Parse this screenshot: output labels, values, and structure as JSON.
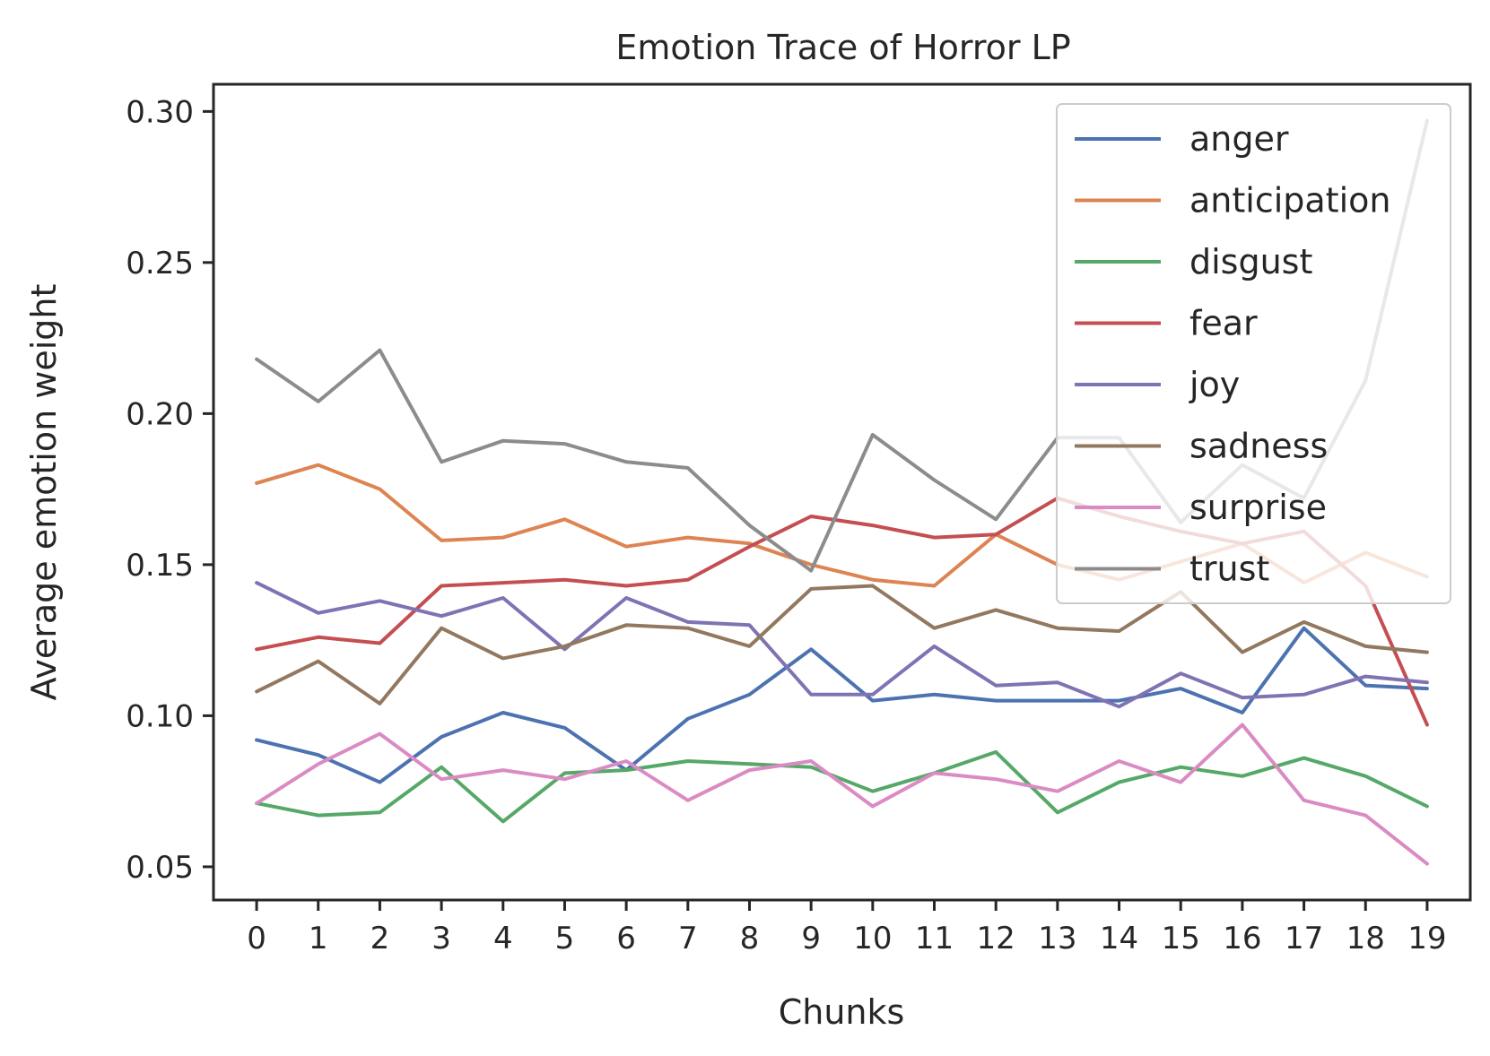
{
  "chart_data": {
    "type": "line",
    "title": "Emotion Trace of Horror LP",
    "xlabel": "Chunks",
    "ylabel": "Average emotion weight",
    "x": [
      0,
      1,
      2,
      3,
      4,
      5,
      6,
      7,
      8,
      9,
      10,
      11,
      12,
      13,
      14,
      15,
      16,
      17,
      18,
      19
    ],
    "xlim": [
      -0.7,
      19.7
    ],
    "ylim": [
      0.039,
      0.309
    ],
    "yticks": [
      0.05,
      0.1,
      0.15,
      0.2,
      0.25,
      0.3
    ],
    "ytick_labels": [
      "0.05",
      "0.10",
      "0.15",
      "0.20",
      "0.25",
      "0.30"
    ],
    "xtick_labels": [
      "0",
      "1",
      "2",
      "3",
      "4",
      "5",
      "6",
      "7",
      "8",
      "9",
      "10",
      "11",
      "12",
      "13",
      "14",
      "15",
      "16",
      "17",
      "18",
      "19"
    ],
    "grid": false,
    "legend_position": "top-right",
    "series": [
      {
        "name": "anger",
        "color": "#4c72b0",
        "values": [
          0.092,
          0.087,
          0.078,
          0.093,
          0.101,
          0.096,
          0.082,
          0.099,
          0.107,
          0.122,
          0.105,
          0.107,
          0.105,
          0.105,
          0.105,
          0.109,
          0.101,
          0.129,
          0.11,
          0.109
        ]
      },
      {
        "name": "anticipation",
        "color": "#dd8452",
        "values": [
          0.177,
          0.183,
          0.175,
          0.158,
          0.159,
          0.165,
          0.156,
          0.159,
          0.157,
          0.15,
          0.145,
          0.143,
          0.16,
          0.15,
          0.145,
          0.151,
          0.157,
          0.144,
          0.154,
          0.146
        ]
      },
      {
        "name": "disgust",
        "color": "#55a868",
        "values": [
          0.071,
          0.067,
          0.068,
          0.083,
          0.065,
          0.081,
          0.082,
          0.085,
          0.084,
          0.083,
          0.075,
          0.081,
          0.088,
          0.068,
          0.078,
          0.083,
          0.08,
          0.086,
          0.08,
          0.07
        ]
      },
      {
        "name": "fear",
        "color": "#c44e52",
        "values": [
          0.122,
          0.126,
          0.124,
          0.143,
          0.144,
          0.145,
          0.143,
          0.145,
          0.156,
          0.166,
          0.163,
          0.159,
          0.16,
          0.172,
          0.166,
          0.161,
          0.157,
          0.161,
          0.143,
          0.097
        ]
      },
      {
        "name": "joy",
        "color": "#8172b3",
        "values": [
          0.144,
          0.134,
          0.138,
          0.133,
          0.139,
          0.122,
          0.139,
          0.131,
          0.13,
          0.107,
          0.107,
          0.123,
          0.11,
          0.111,
          0.103,
          0.114,
          0.106,
          0.107,
          0.113,
          0.111
        ]
      },
      {
        "name": "sadness",
        "color": "#937860",
        "values": [
          0.108,
          0.118,
          0.104,
          0.129,
          0.119,
          0.123,
          0.13,
          0.129,
          0.123,
          0.142,
          0.143,
          0.129,
          0.135,
          0.129,
          0.128,
          0.141,
          0.121,
          0.131,
          0.123,
          0.121
        ]
      },
      {
        "name": "surprise",
        "color": "#da8bc3",
        "values": [
          0.071,
          0.084,
          0.094,
          0.079,
          0.082,
          0.079,
          0.085,
          0.072,
          0.082,
          0.085,
          0.07,
          0.081,
          0.079,
          0.075,
          0.085,
          0.078,
          0.097,
          0.072,
          0.067,
          0.051
        ]
      },
      {
        "name": "trust",
        "color": "#8c8c8c",
        "values": [
          0.218,
          0.204,
          0.221,
          0.184,
          0.191,
          0.19,
          0.184,
          0.182,
          0.163,
          0.148,
          0.193,
          0.178,
          0.165,
          0.192,
          0.192,
          0.164,
          0.183,
          0.172,
          0.211,
          0.297
        ]
      }
    ]
  }
}
